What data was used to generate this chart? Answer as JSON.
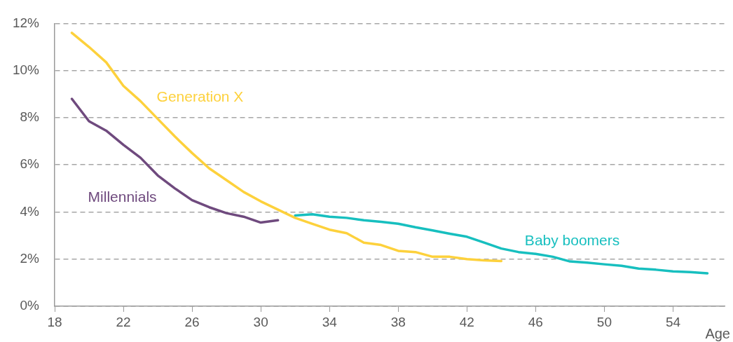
{
  "chart_data": {
    "type": "line",
    "xlabel": "Age",
    "series": [
      {
        "name": "Generation X",
        "color": "#fdd13c",
        "x": [
          19,
          20,
          21,
          22,
          23,
          24,
          25,
          26,
          27,
          28,
          29,
          30,
          31,
          32,
          33,
          34,
          35,
          36,
          37,
          38,
          39,
          40,
          41,
          42,
          43,
          44
        ],
        "values": [
          11.6,
          11.0,
          10.35,
          9.35,
          8.7,
          7.95,
          7.2,
          6.5,
          5.85,
          5.35,
          4.85,
          4.45,
          4.1,
          3.75,
          3.5,
          3.25,
          3.1,
          2.7,
          2.6,
          2.35,
          2.3,
          2.1,
          2.1,
          2.0,
          1.95,
          1.92
        ]
      },
      {
        "name": "Millennials",
        "color": "#6f4a7e",
        "x": [
          19,
          20,
          21,
          22,
          23,
          24,
          25,
          26,
          27,
          28,
          29,
          30,
          31
        ],
        "values": [
          8.8,
          7.85,
          7.45,
          6.85,
          6.3,
          5.55,
          5.0,
          4.5,
          4.2,
          3.95,
          3.8,
          3.55,
          3.65
        ]
      },
      {
        "name": "Baby boomers",
        "color": "#17bfbf",
        "x": [
          32,
          33,
          34,
          35,
          36,
          37,
          38,
          39,
          40,
          41,
          42,
          43,
          44,
          45,
          46,
          47,
          48,
          49,
          50,
          51,
          52,
          53,
          54,
          55,
          56
        ],
        "values": [
          3.85,
          3.9,
          3.8,
          3.75,
          3.65,
          3.58,
          3.5,
          3.35,
          3.22,
          3.08,
          2.95,
          2.7,
          2.45,
          2.3,
          2.22,
          2.1,
          1.9,
          1.85,
          1.78,
          1.72,
          1.6,
          1.55,
          1.48,
          1.45,
          1.4
        ]
      }
    ],
    "xlim": [
      18,
      57
    ],
    "xticks": [
      18,
      22,
      26,
      30,
      34,
      38,
      42,
      46,
      50,
      54
    ],
    "ylim": [
      0,
      12
    ],
    "yticks": [
      {
        "value": 0,
        "label": "0%"
      },
      {
        "value": 2,
        "label": "2%"
      },
      {
        "value": 4,
        "label": "4%"
      },
      {
        "value": 6,
        "label": "6%"
      },
      {
        "value": 8,
        "label": "8%"
      },
      {
        "value": 10,
        "label": "10%"
      },
      {
        "value": 12,
        "label": "12%"
      }
    ],
    "grid": "y",
    "legend": false,
    "marker": "none",
    "line_style": "solid"
  }
}
